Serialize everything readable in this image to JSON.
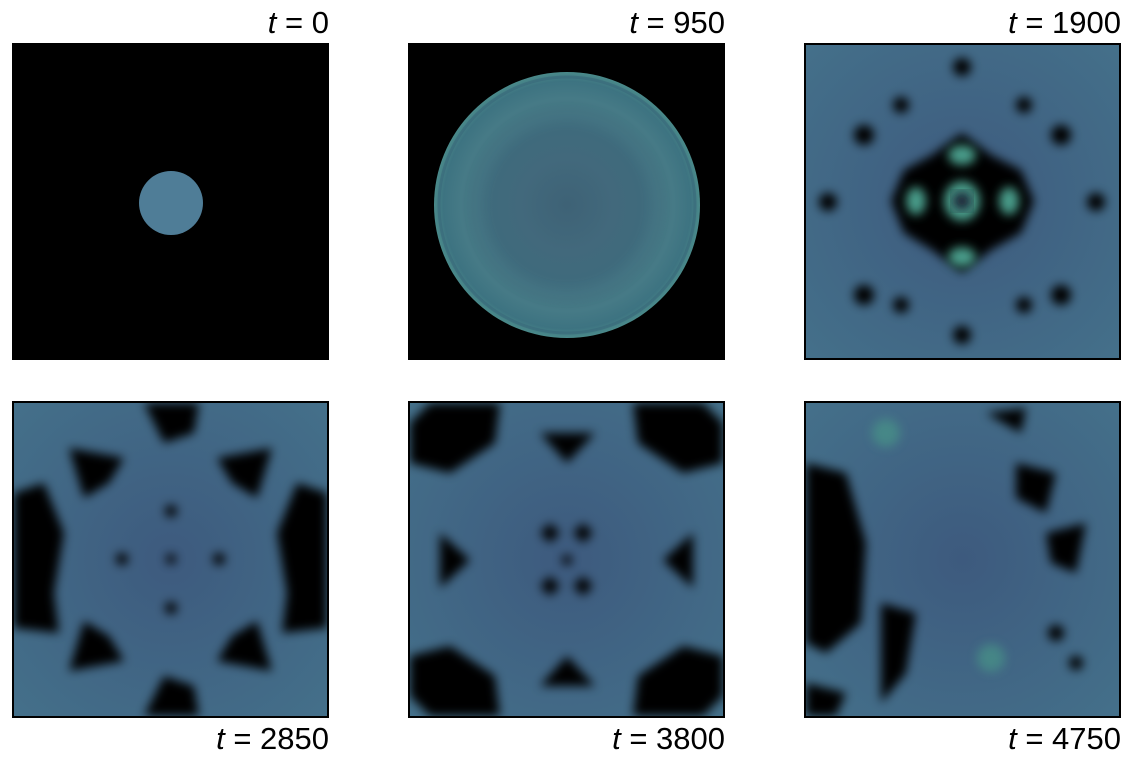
{
  "panels": [
    {
      "label": "t = 0"
    },
    {
      "label": "t = 950"
    },
    {
      "label": "t = 1900"
    },
    {
      "label": "t = 2850"
    },
    {
      "label": "t = 3800"
    },
    {
      "label": "t = 4750"
    }
  ]
}
